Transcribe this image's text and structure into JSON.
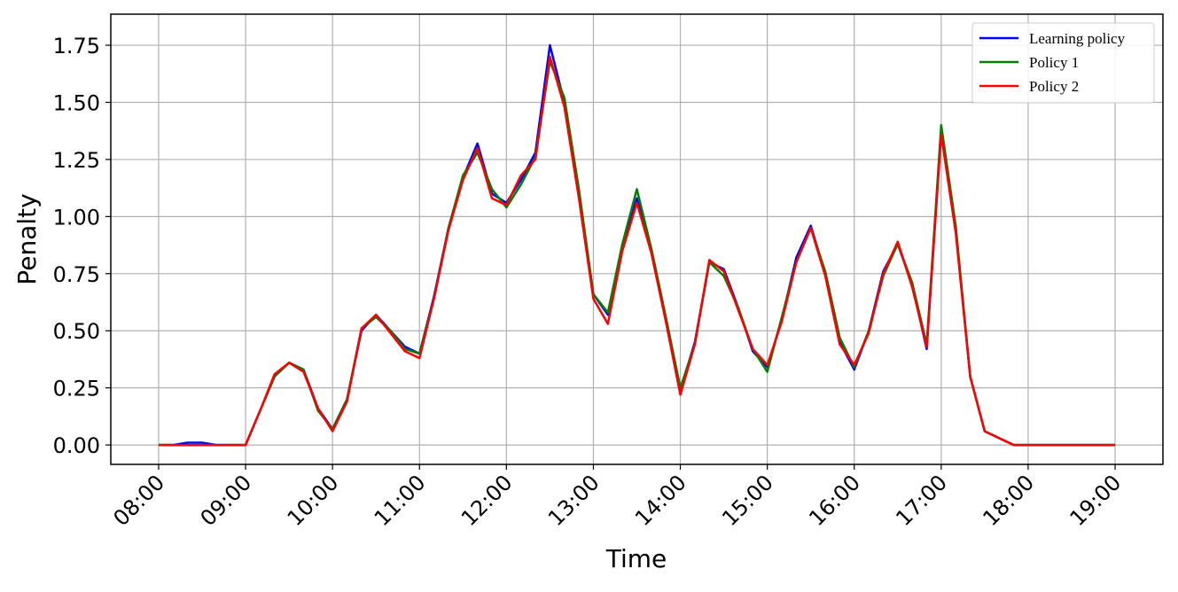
{
  "chart_data": {
    "type": "line",
    "x_label": "Time",
    "y_label": "Penalty",
    "x": [
      "08:00",
      "08:10",
      "08:20",
      "08:30",
      "08:40",
      "08:50",
      "09:00",
      "09:10",
      "09:20",
      "09:30",
      "09:40",
      "09:50",
      "10:00",
      "10:10",
      "10:20",
      "10:30",
      "10:40",
      "10:50",
      "11:00",
      "11:10",
      "11:20",
      "11:30",
      "11:40",
      "11:50",
      "12:00",
      "12:10",
      "12:20",
      "12:30",
      "12:40",
      "12:50",
      "13:00",
      "13:10",
      "13:20",
      "13:30",
      "13:40",
      "13:50",
      "14:00",
      "14:10",
      "14:20",
      "14:30",
      "14:40",
      "14:50",
      "15:00",
      "15:10",
      "15:20",
      "15:30",
      "15:40",
      "15:50",
      "16:00",
      "16:10",
      "16:20",
      "16:30",
      "16:40",
      "16:50",
      "17:00",
      "17:10",
      "17:20",
      "17:30",
      "17:40",
      "17:50",
      "18:00",
      "18:10",
      "18:20",
      "18:30",
      "18:40",
      "18:50",
      "19:00"
    ],
    "series": [
      {
        "name": "Learning policy",
        "color": "#0000ff",
        "values": [
          0,
          0,
          0.01,
          0.01,
          0,
          0,
          0,
          0.15,
          0.3,
          0.36,
          0.33,
          0.16,
          0.07,
          0.2,
          0.5,
          0.57,
          0.5,
          0.43,
          0.4,
          0.65,
          0.95,
          1.17,
          1.32,
          1.1,
          1.06,
          1.16,
          1.28,
          1.75,
          1.5,
          1.1,
          0.66,
          0.57,
          0.86,
          1.08,
          0.85,
          0.55,
          0.24,
          0.45,
          0.8,
          0.77,
          0.6,
          0.41,
          0.34,
          0.55,
          0.82,
          0.96,
          0.75,
          0.45,
          0.33,
          0.5,
          0.76,
          0.88,
          0.7,
          0.42,
          1.38,
          0.95,
          0.3,
          0.06,
          0.03,
          0,
          0,
          0,
          0,
          0,
          0,
          0,
          0
        ]
      },
      {
        "name": "Policy 1",
        "color": "#008000",
        "values": [
          0,
          0,
          0,
          0,
          0,
          0,
          0,
          0.15,
          0.3,
          0.36,
          0.33,
          0.15,
          0.07,
          0.2,
          0.51,
          0.56,
          0.5,
          0.42,
          0.4,
          0.64,
          0.95,
          1.18,
          1.28,
          1.12,
          1.04,
          1.14,
          1.26,
          1.68,
          1.52,
          1.12,
          0.66,
          0.58,
          0.88,
          1.12,
          0.86,
          0.56,
          0.25,
          0.44,
          0.8,
          0.74,
          0.6,
          0.42,
          0.32,
          0.56,
          0.8,
          0.95,
          0.76,
          0.47,
          0.34,
          0.5,
          0.74,
          0.88,
          0.71,
          0.44,
          1.4,
          0.96,
          0.3,
          0.06,
          0.03,
          0,
          0,
          0,
          0,
          0,
          0,
          0,
          0
        ]
      },
      {
        "name": "Policy 2",
        "color": "#ff0000",
        "values": [
          0,
          0,
          0,
          0,
          0,
          0,
          0,
          0.15,
          0.31,
          0.36,
          0.32,
          0.16,
          0.06,
          0.19,
          0.51,
          0.57,
          0.49,
          0.41,
          0.38,
          0.64,
          0.94,
          1.16,
          1.3,
          1.08,
          1.05,
          1.18,
          1.25,
          1.7,
          1.48,
          1.08,
          0.64,
          0.53,
          0.85,
          1.06,
          0.84,
          0.54,
          0.22,
          0.44,
          0.81,
          0.76,
          0.59,
          0.42,
          0.35,
          0.54,
          0.8,
          0.95,
          0.74,
          0.44,
          0.35,
          0.49,
          0.75,
          0.89,
          0.69,
          0.43,
          1.36,
          0.93,
          0.3,
          0.06,
          0.03,
          0,
          0,
          0,
          0,
          0,
          0,
          0,
          0
        ]
      }
    ],
    "xlim": [
      "07:27",
      "19:33"
    ],
    "xticks": [
      "08:00",
      "09:00",
      "10:00",
      "11:00",
      "12:00",
      "13:00",
      "14:00",
      "15:00",
      "16:00",
      "17:00",
      "18:00",
      "19:00"
    ],
    "ylim": [
      -0.085,
      1.886
    ],
    "yticks": [
      {
        "value": 0,
        "label": "0.00"
      },
      {
        "value": 0.25,
        "label": "0.25"
      },
      {
        "value": 0.5,
        "label": "0.50"
      },
      {
        "value": 0.75,
        "label": "0.75"
      },
      {
        "value": 1,
        "label": "1.00"
      },
      {
        "value": 1.25,
        "label": "1.25"
      },
      {
        "value": 1.5,
        "label": "1.50"
      },
      {
        "value": 1.75,
        "label": "1.75"
      }
    ],
    "grid": true,
    "legend": "upper right"
  }
}
